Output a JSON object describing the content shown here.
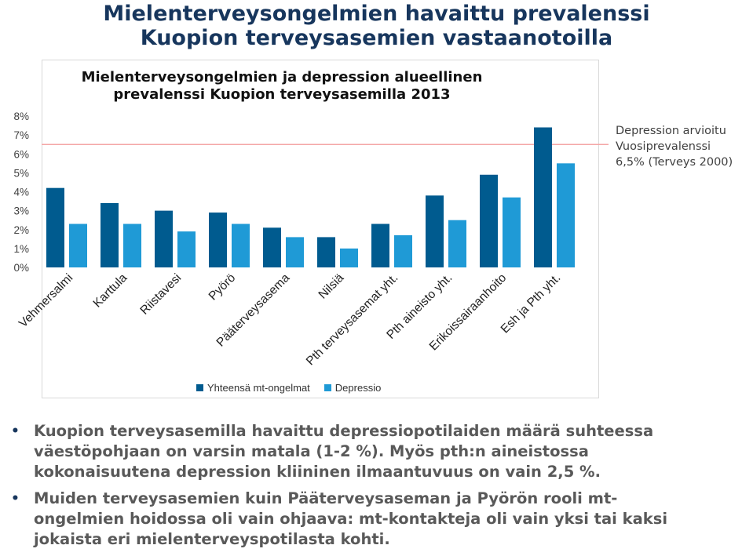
{
  "slide_title": [
    "Mielenterveysongelmien havaittu prevalenssi",
    "Kuopion terveysasemien vastaanotoilla"
  ],
  "annotation": [
    "Depression arvioitu",
    "Vuosiprevalenssi",
    "6,5% (Terveys 2000)"
  ],
  "colors": {
    "title": "#17365d",
    "series1": "#005b8f",
    "series2": "#1f9ad6",
    "reference_line": "#f4a6a6"
  },
  "chart_data": {
    "type": "bar",
    "title": [
      "Mielenterveysongelmien ja depression alueellinen",
      "prevalenssi Kuopion terveysasemilla 2013"
    ],
    "categories": [
      "Vehmersalmi",
      "Karttula",
      "Riistavesi",
      "Pyörö",
      "Pääterveysasema",
      "Nilsiä",
      "Pth terveysasemat yht.",
      "Pth aineisto yht.",
      "Erikoissairaanhoito",
      "Esh ja Pth yht."
    ],
    "series": [
      {
        "name": "Yhteensä mt-ongelmat",
        "values": [
          4.2,
          3.4,
          3.0,
          2.9,
          2.1,
          1.6,
          2.3,
          3.8,
          4.9,
          7.4
        ]
      },
      {
        "name": "Depressio",
        "values": [
          2.3,
          2.3,
          1.9,
          2.3,
          1.6,
          1.0,
          1.7,
          2.5,
          3.7,
          5.5
        ]
      }
    ],
    "yticks": [
      "0%",
      "1%",
      "2%",
      "3%",
      "4%",
      "5%",
      "6%",
      "7%",
      "8%"
    ],
    "ylim": [
      0,
      8
    ],
    "reference_line": 6.5,
    "grid": false,
    "legend_position": "bottom"
  },
  "bullets": [
    [
      "Kuopion terveysasemilla havaittu depressiopotilaiden määrä suhteessa",
      "väestöpohjaan on varsin matala (1-2 %). Myös pth:n aineistossa",
      "kokonaisuutena depression kliininen ilmaantuvuus on vain 2,5 %."
    ],
    [
      "Muiden terveysasemien kuin Pääterveysaseman ja Pyörön rooli mt-",
      "ongelmien hoidossa oli vain ohjaava: mt-kontakteja oli vain yksi tai kaksi",
      "jokaista eri mielenterveyspotilasta kohti."
    ]
  ],
  "bullet_char": "•"
}
